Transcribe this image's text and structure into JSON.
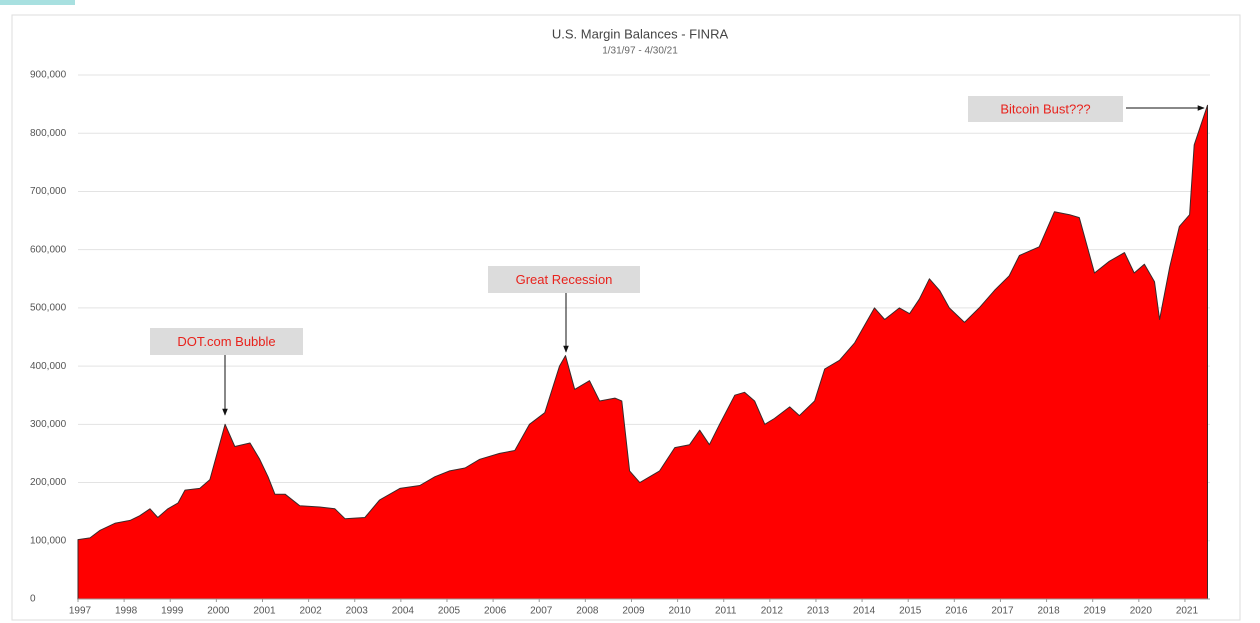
{
  "chart_data": {
    "type": "area",
    "title": "U.S. Margin Balances - FINRA",
    "subtitle": "1/31/97 - 4/30/21",
    "color": "#ff0000",
    "grid": true,
    "x": [
      1997.0,
      1997.26,
      1997.48,
      1997.8,
      1998.13,
      1998.34,
      1998.56,
      1998.73,
      1998.95,
      1999.17,
      1999.32,
      1999.64,
      1999.86,
      2000.19,
      2000.4,
      2000.73,
      2000.94,
      2001.12,
      2001.27,
      2001.49,
      2001.81,
      2002.24,
      2002.57,
      2002.79,
      2003.22,
      2003.54,
      2003.98,
      2004.41,
      2004.74,
      2005.06,
      2005.39,
      2005.71,
      2006.14,
      2006.47,
      2006.79,
      2007.12,
      2007.44,
      2007.57,
      2007.77,
      2008.09,
      2008.31,
      2008.64,
      2008.79,
      2008.96,
      2009.18,
      2009.61,
      2009.94,
      2010.26,
      2010.48,
      2010.69,
      2010.91,
      2011.24,
      2011.45,
      2011.67,
      2011.89,
      2012.1,
      2012.43,
      2012.64,
      2012.97,
      2013.19,
      2013.51,
      2013.84,
      2014.27,
      2014.49,
      2014.81,
      2015.03,
      2015.24,
      2015.46,
      2015.68,
      2015.89,
      2016.22,
      2016.54,
      2016.87,
      2017.19,
      2017.41,
      2017.84,
      2018.17,
      2018.5,
      2018.71,
      2019.04,
      2019.36,
      2019.69,
      2019.9,
      2020.12,
      2020.34,
      2020.45,
      2020.67,
      2020.88,
      2021.1,
      2021.2,
      2021.49
    ],
    "values": [
      102000,
      105000,
      118000,
      130000,
      135000,
      143000,
      155000,
      140000,
      155000,
      165000,
      187000,
      190000,
      205000,
      300000,
      262000,
      268000,
      240000,
      210000,
      180000,
      180000,
      160000,
      158000,
      155000,
      138000,
      140000,
      170000,
      190000,
      195000,
      210000,
      220000,
      225000,
      240000,
      250000,
      255000,
      300000,
      320000,
      400000,
      418000,
      360000,
      375000,
      340000,
      345000,
      340000,
      220000,
      200000,
      220000,
      260000,
      265000,
      290000,
      265000,
      300000,
      350000,
      355000,
      340000,
      300000,
      310000,
      330000,
      315000,
      340000,
      395000,
      410000,
      440000,
      500000,
      480000,
      500000,
      490000,
      515000,
      550000,
      530000,
      500000,
      475000,
      500000,
      530000,
      555000,
      590000,
      605000,
      665000,
      660000,
      655000,
      560000,
      580000,
      595000,
      560000,
      575000,
      545000,
      480000,
      570000,
      640000,
      660000,
      780000,
      848000
    ],
    "xlim": [
      1997,
      2021.5
    ],
    "ylim": [
      0,
      900000
    ],
    "xticks": [
      1997,
      1998,
      1999,
      2000,
      2001,
      2002,
      2003,
      2004,
      2005,
      2006,
      2007,
      2008,
      2009,
      2010,
      2011,
      2012,
      2013,
      2014,
      2015,
      2016,
      2017,
      2018,
      2019,
      2020,
      2021
    ],
    "yticks": [
      0,
      {
        "value": 100000,
        "label": "100,000"
      },
      {
        "value": 200000,
        "label": "200,000"
      },
      {
        "value": 300000,
        "label": "300,000"
      },
      {
        "value": 400000,
        "label": "400,000"
      },
      {
        "value": 500000,
        "label": "500,000"
      },
      {
        "value": 600000,
        "label": "600,000"
      },
      {
        "value": 700000,
        "label": "700,000"
      },
      {
        "value": 800000,
        "label": "800,000"
      },
      {
        "value": 900000,
        "label": "900,000"
      }
    ],
    "annotations": [
      "DOT.com Bubble",
      "Great Recession",
      "Bitcoin Bust???"
    ]
  }
}
